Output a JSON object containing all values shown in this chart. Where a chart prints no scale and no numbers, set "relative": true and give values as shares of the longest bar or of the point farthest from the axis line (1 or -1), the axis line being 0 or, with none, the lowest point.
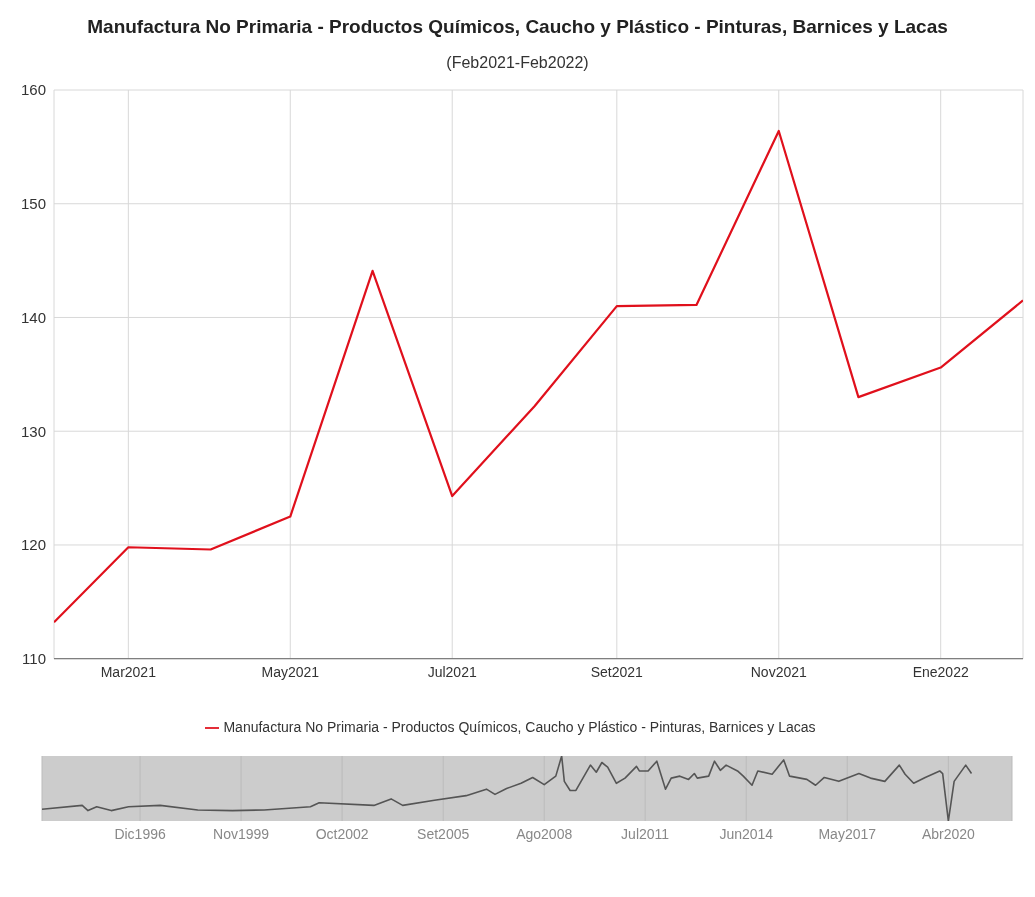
{
  "chart_data": [
    {
      "type": "line",
      "title": "Manufactura No Primaria - Productos Químicos, Caucho y Plástico - Pinturas, Barnices y Lacas",
      "subtitle": "(Feb2021-Feb2022)",
      "x": [
        "2021-02",
        "2021-03",
        "2021-04",
        "2021-05",
        "2021-06",
        "2021-07",
        "2021-08",
        "2021-09",
        "2021-10",
        "2021-11",
        "2021-12",
        "2022-01",
        "2022-02"
      ],
      "series": [
        {
          "name": "Manufactura No Primaria - Productos Químicos, Caucho y Plástico - Pinturas, Barnices y Lacas",
          "color": "#e0101c",
          "values": [
            113.2,
            119.8,
            119.6,
            122.5,
            144.1,
            124.3,
            132.2,
            141.0,
            141.1,
            156.4,
            133.0,
            135.6,
            141.5
          ]
        }
      ],
      "xlim": [
        "2021-02",
        "2022-02"
      ],
      "xticks": [
        {
          "value": "2021-03",
          "label": "Mar2021"
        },
        {
          "value": "2021-05",
          "label": "May2021"
        },
        {
          "value": "2021-07",
          "label": "Jul2021"
        },
        {
          "value": "2021-09",
          "label": "Set2021"
        },
        {
          "value": "2021-11",
          "label": "Nov2021"
        },
        {
          "value": "2022-01",
          "label": "Ene2022"
        }
      ],
      "ylim": [
        110,
        160
      ],
      "yticks": [
        110,
        120,
        130,
        140,
        150,
        160
      ],
      "grid": true,
      "legend": "bottom"
    },
    {
      "type": "line",
      "relative": true,
      "tick_labels": "x",
      "grid": "x",
      "x": [
        "1994-02",
        "1995-04",
        "1995-06",
        "1995-09",
        "1996-02",
        "1996-08",
        "1997-07",
        "1998-08",
        "1999-08",
        "2000-07",
        "2001-11",
        "2002-02",
        "2003-09",
        "2004-03",
        "2004-07",
        "2005-06",
        "2006-05",
        "2006-12",
        "2007-03",
        "2007-07",
        "2007-12",
        "2008-04",
        "2008-08",
        "2008-12",
        "2009-02",
        "2009-03",
        "2009-05",
        "2009-07",
        "2009-12",
        "2010-02",
        "2010-04",
        "2010-06",
        "2010-09",
        "2010-12",
        "2011-04",
        "2011-05",
        "2011-08",
        "2011-11",
        "2012-02",
        "2012-04",
        "2012-07",
        "2012-10",
        "2012-12",
        "2013-01",
        "2013-05",
        "2013-07",
        "2013-09",
        "2013-11",
        "2014-03",
        "2014-05",
        "2014-08",
        "2014-10",
        "2015-03",
        "2015-07",
        "2015-09",
        "2016-03",
        "2016-06",
        "2016-09",
        "2017-02",
        "2017-09",
        "2018-01",
        "2018-06",
        "2018-11",
        "2019-01",
        "2019-04",
        "2019-08",
        "2020-01",
        "2020-02",
        "2020-04",
        "2020-06",
        "2020-10",
        "2020-12"
      ],
      "series": [
        {
          "color": "#555555",
          "values": [
            0.18,
            0.24,
            0.16,
            0.22,
            0.16,
            0.22,
            0.24,
            0.17,
            0.16,
            0.17,
            0.22,
            0.28,
            0.24,
            0.34,
            0.24,
            0.32,
            0.39,
            0.49,
            0.41,
            0.5,
            0.58,
            0.67,
            0.56,
            0.69,
            1,
            0.61,
            0.47,
            0.47,
            0.86,
            0.75,
            0.9,
            0.83,
            0.58,
            0.66,
            0.84,
            0.77,
            0.77,
            0.92,
            0.49,
            0.66,
            0.69,
            0.64,
            0.73,
            0.66,
            0.69,
            0.92,
            0.78,
            0.86,
            0.77,
            0.69,
            0.55,
            0.77,
            0.72,
            0.94,
            0.69,
            0.64,
            0.55,
            0.67,
            0.61,
            0.73,
            0.66,
            0.61,
            0.86,
            0.72,
            0.58,
            0.67,
            0.77,
            0.73,
            0,
            0.61,
            0.86,
            0.73
          ]
        }
      ],
      "xlim": [
        "1994-02",
        "2022-02"
      ],
      "xticks": [
        {
          "value": "1996-12",
          "label": "Dic1996"
        },
        {
          "value": "1999-11",
          "label": "Nov1999"
        },
        {
          "value": "2002-10",
          "label": "Oct2002"
        },
        {
          "value": "2005-09",
          "label": "Set2005"
        },
        {
          "value": "2008-08",
          "label": "Ago2008"
        },
        {
          "value": "2011-07",
          "label": "Jul2011"
        },
        {
          "value": "2014-06",
          "label": "Jun2014"
        },
        {
          "value": "2017-05",
          "label": "May2017"
        },
        {
          "value": "2020-04",
          "label": "Abr2020"
        }
      ]
    }
  ]
}
